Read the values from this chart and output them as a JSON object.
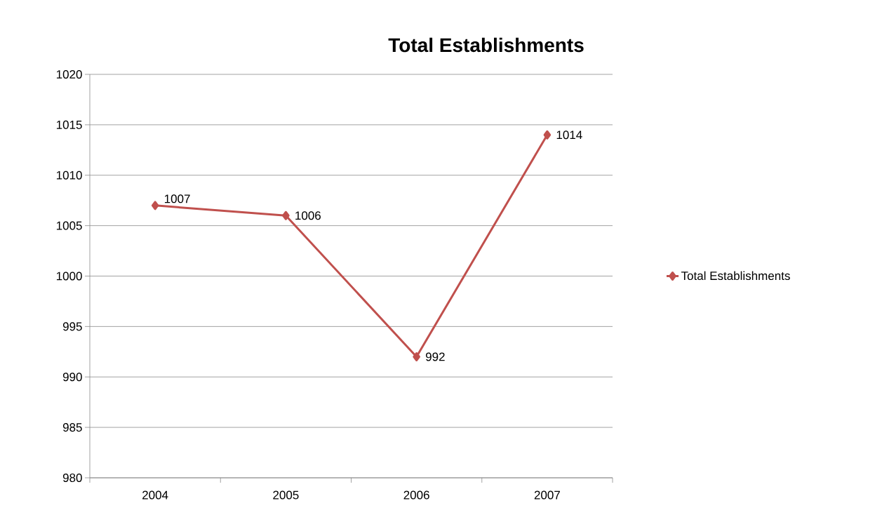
{
  "chart_data": {
    "type": "line",
    "title": "Total Establishments",
    "categories": [
      "2004",
      "2005",
      "2006",
      "2007"
    ],
    "series": [
      {
        "name": "Total Establishments",
        "color": "#c0504d",
        "values": [
          1007,
          1006,
          992,
          1014
        ]
      }
    ],
    "value_labels": [
      "1007",
      "1006",
      "992",
      "1014"
    ],
    "ylim": [
      980,
      1020
    ],
    "yticks": [
      980,
      985,
      990,
      995,
      1000,
      1005,
      1010,
      1015,
      1020
    ],
    "grid": "y",
    "legend": "right",
    "marker": "diamond",
    "line_style": "solid"
  }
}
